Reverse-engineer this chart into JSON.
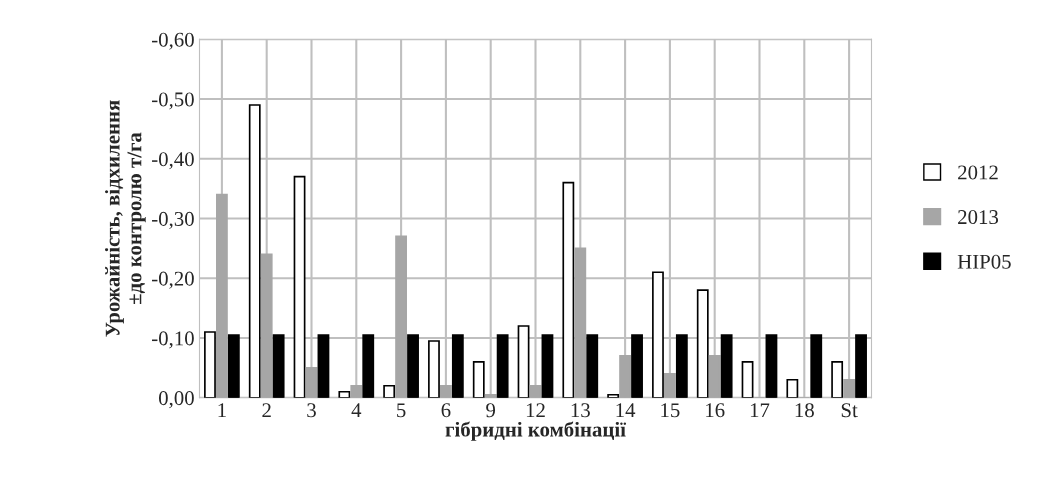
{
  "chart_data": {
    "type": "bar",
    "xlabel": "гібридні комбінації",
    "ylabel": "Урожайність, відхилення\n±до контролю т/га",
    "categories": [
      "1",
      "2",
      "3",
      "4",
      "5",
      "6",
      "9",
      "12",
      "13",
      "14",
      "15",
      "16",
      "17",
      "18",
      "St"
    ],
    "series": [
      {
        "name": "2012",
        "color": "#ffffff",
        "values": [
          -0.11,
          -0.49,
          -0.37,
          -0.01,
          -0.02,
          -0.095,
          -0.06,
          -0.12,
          -0.36,
          -0.005,
          -0.21,
          -0.18,
          -0.06,
          -0.03,
          -0.06
        ]
      },
      {
        "name": "2013",
        "color": "#a6a6a6",
        "values": [
          -0.34,
          -0.24,
          -0.05,
          -0.02,
          -0.27,
          -0.02,
          -0.005,
          -0.02,
          -0.25,
          -0.07,
          -0.04,
          -0.07,
          null,
          null,
          -0.03
        ]
      },
      {
        "name": "НІР05",
        "color": "#000000",
        "values": [
          -0.105,
          -0.105,
          -0.105,
          -0.105,
          -0.105,
          -0.105,
          -0.105,
          -0.105,
          -0.105,
          -0.105,
          -0.105,
          -0.105,
          -0.105,
          -0.105,
          -0.105
        ]
      }
    ],
    "ylim": [
      0,
      -0.6
    ],
    "yticks": [
      {
        "value": 0,
        "label": "0,00"
      },
      {
        "value": -0.1,
        "label": "-0,10"
      },
      {
        "value": -0.2,
        "label": "-0,20"
      },
      {
        "value": -0.3,
        "label": "-0,30"
      },
      {
        "value": -0.4,
        "label": "-0,40"
      },
      {
        "value": -0.5,
        "label": "-0,50"
      },
      {
        "value": -0.6,
        "label": "-0,60"
      }
    ],
    "grid": true,
    "legend": "right"
  }
}
